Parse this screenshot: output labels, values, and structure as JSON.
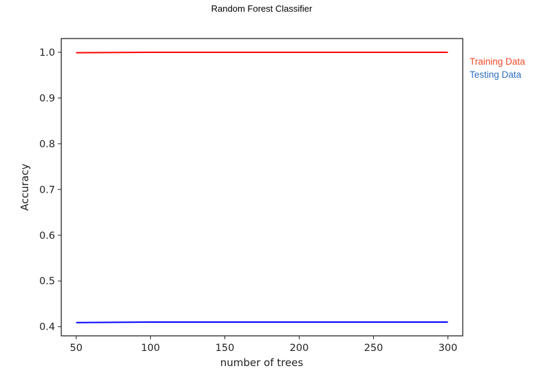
{
  "chart_data": {
    "type": "line",
    "title": "Random Forest Classifier",
    "xlabel": "number of trees",
    "ylabel": "Accuracy",
    "xlim": [
      40,
      310
    ],
    "ylim": [
      0.38,
      1.03
    ],
    "x_ticks": [
      50,
      100,
      150,
      200,
      250,
      300
    ],
    "x_tick_labels": [
      "50",
      "100",
      "150",
      "200",
      "250",
      "300"
    ],
    "y_ticks": [
      0.4,
      0.5,
      0.6,
      0.7,
      0.8,
      0.9,
      1.0
    ],
    "y_tick_labels": [
      "0.4",
      "0.5",
      "0.6",
      "0.7",
      "0.8",
      "0.9",
      "1.0"
    ],
    "grid": false,
    "legend_position": "outside-right",
    "series": [
      {
        "name": "Training Data",
        "color": "#ff0000",
        "legend_color": "#f04a2a",
        "x": [
          50,
          100,
          150,
          200,
          250,
          300
        ],
        "y": [
          0.999,
          1.0,
          1.0,
          1.0,
          1.0,
          1.0
        ]
      },
      {
        "name": "Testing Data",
        "color": "#0000ff",
        "legend_color": "#2f6fc4",
        "x": [
          50,
          100,
          150,
          200,
          250,
          300
        ],
        "y": [
          0.409,
          0.41,
          0.41,
          0.41,
          0.41,
          0.41
        ]
      }
    ]
  }
}
